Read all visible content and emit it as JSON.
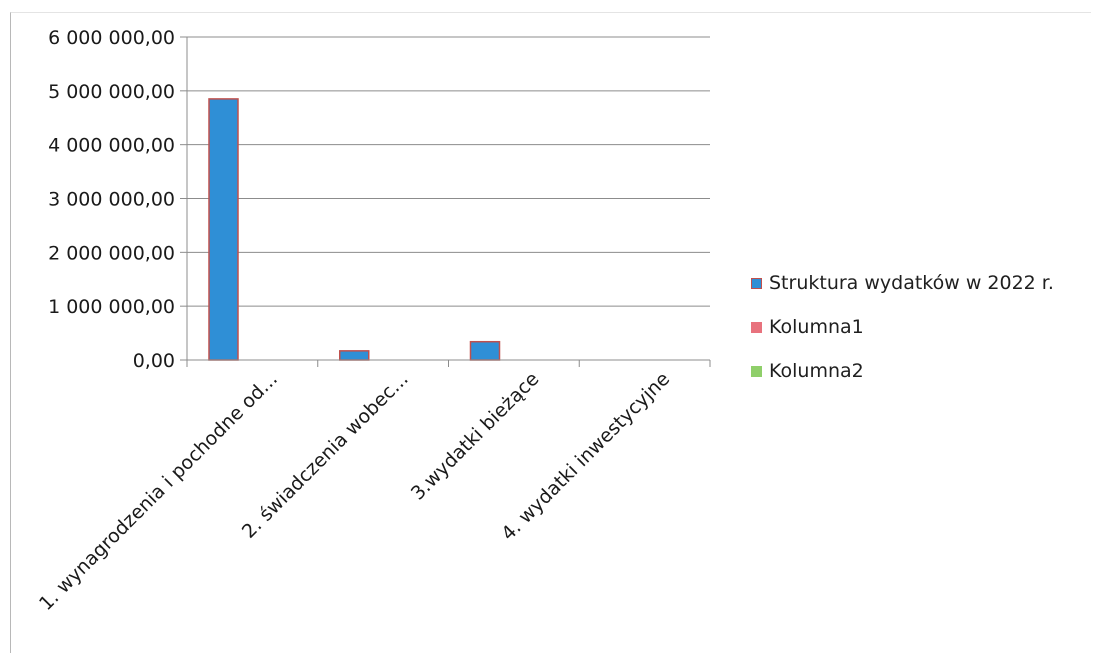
{
  "chart_data": {
    "type": "bar",
    "categories": [
      "1. wynagrodzenia i pochodne od...",
      "2. świadczenia wobec...",
      "3.wydatki bieżące",
      "4. wydatki inwestycyjne"
    ],
    "series": [
      {
        "name": "Struktura wydatków w 2022 r.",
        "values": [
          4850000,
          170000,
          340000,
          0
        ],
        "color": "#2f8fd6",
        "edge": "#c0504d"
      },
      {
        "name": "Kolumna1",
        "values": [
          0,
          0,
          0,
          0
        ],
        "color": "#e8727d"
      },
      {
        "name": "Kolumna2",
        "values": [
          0,
          0,
          0,
          0
        ],
        "color": "#8fcf6a"
      }
    ],
    "ylim": [
      0,
      6000000
    ],
    "yticks": [
      "0,00",
      "1 000 000,00",
      "2 000 000,00",
      "3 000 000,00",
      "4 000 000,00",
      "5 000 000,00",
      "6 000 000,00"
    ],
    "grid": true,
    "legend_position": "right",
    "title": "",
    "xlabel": "",
    "ylabel": ""
  }
}
